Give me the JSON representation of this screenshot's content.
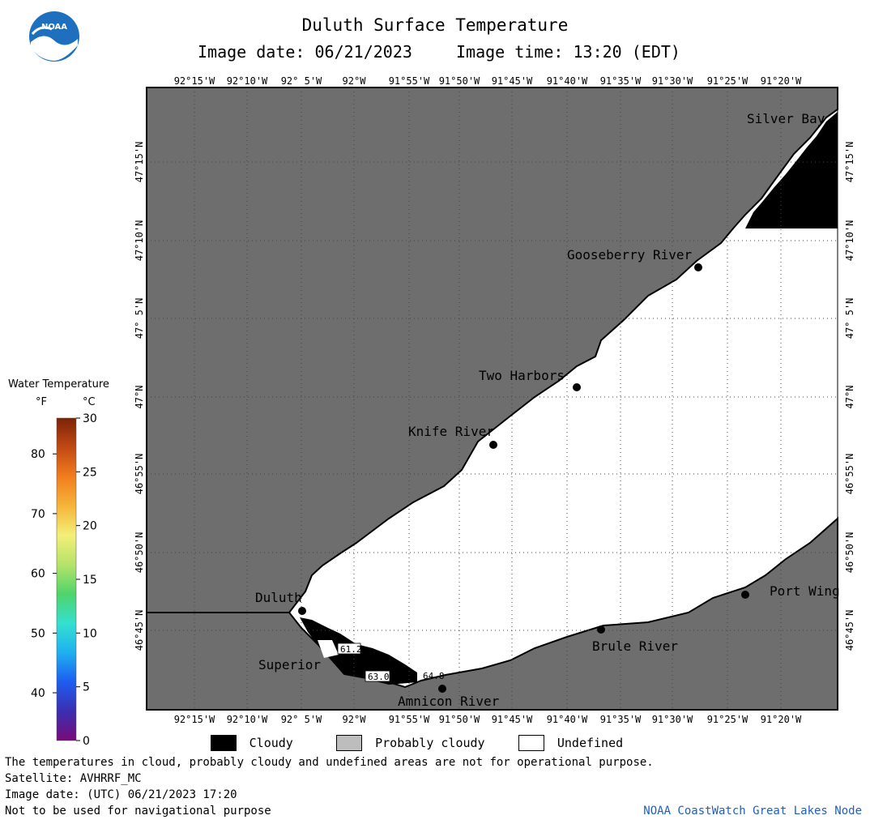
{
  "header": {
    "logo_text": "NOAA",
    "title": "Duluth Surface Temperature",
    "image_date_label": "Image date:",
    "image_date": "06/21/2023",
    "image_time_label": "Image time:",
    "image_time": "13:20 (EDT)"
  },
  "axes": {
    "longitudes": [
      "92°15'W",
      "92°10'W",
      "92° 5'W",
      "92°W",
      "91°55'W",
      "91°50'W",
      "91°45'W",
      "91°40'W",
      "91°35'W",
      "91°30'W",
      "91°25'W",
      "91°20'W"
    ],
    "latitudes": [
      "47°15'N",
      "47°10'N",
      "47° 5'N",
      "47°N",
      "46°55'N",
      "46°50'N",
      "46°45'N"
    ]
  },
  "places": {
    "silver_bay": "Silver Bay",
    "gooseberry": "Gooseberry River",
    "two_harbors": "Two Harbors",
    "knife_river": "Knife River",
    "duluth": "Duluth",
    "superior": "Superior",
    "amnicon": "Amnicon River",
    "brule": "Brule River",
    "port_wing": "Port Wing"
  },
  "readings": {
    "r1": "61.2",
    "r2": "63.0",
    "r3": "64.8"
  },
  "colorbar": {
    "title": "Water Temperature",
    "unit_f": "°F",
    "unit_c": "°C",
    "f_ticks": [
      "80",
      "70",
      "60",
      "50",
      "40"
    ],
    "c_ticks": [
      "30",
      "25",
      "20",
      "15",
      "10",
      "5",
      "0"
    ],
    "colors": [
      "#7a0a7a",
      "#3b2fb0",
      "#1e5cf0",
      "#1fb0f0",
      "#35e0d0",
      "#4fd46a",
      "#b5e36a",
      "#f3ef78",
      "#f5b53a",
      "#f27d1e",
      "#c24914",
      "#7a2306"
    ]
  },
  "legend": {
    "cloudy": "Cloudy",
    "probably_cloudy": "Probably cloudy",
    "undefined": "Undefined",
    "colors": {
      "cloudy": "#000000",
      "probably_cloudy": "#bdbdbd",
      "undefined": "#ffffff",
      "land": "#6e6e6e"
    }
  },
  "footer": {
    "disclaimer": "The temperatures in cloud, probably cloudy and undefined areas are not for operational purpose.",
    "satellite": "Satellite: AVHRRF_MC",
    "utc_date": "Image date: (UTC) 06/21/2023  17:20",
    "nav_warning": "Not to be used for navigational purpose",
    "credit": "NOAA CoastWatch Great Lakes Node"
  }
}
